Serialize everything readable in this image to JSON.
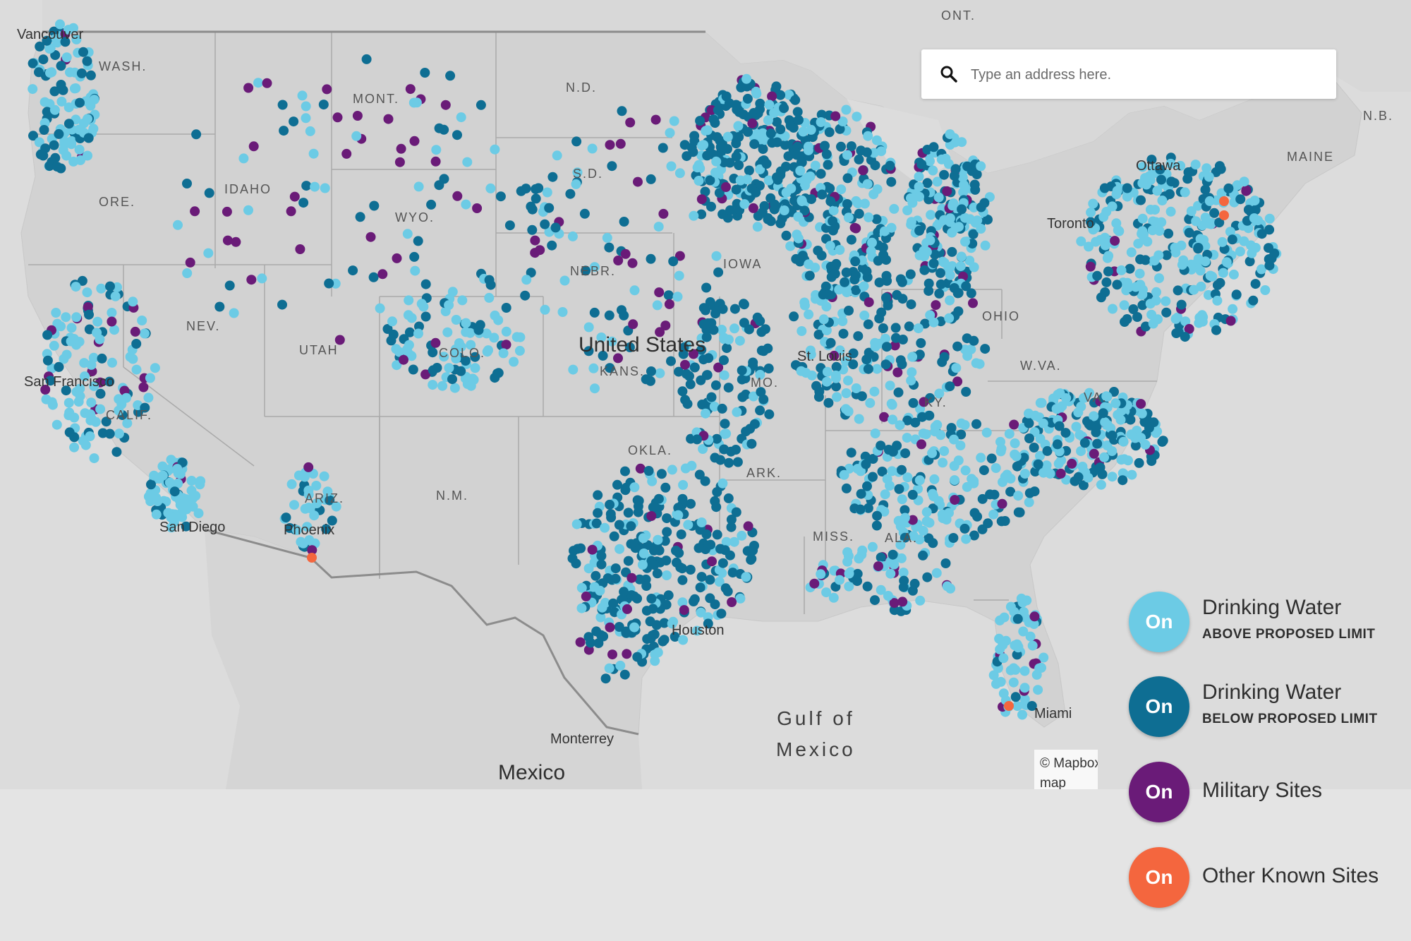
{
  "search": {
    "placeholder": "Type an address here."
  },
  "map": {
    "state_labels": [
      "WASH.",
      "MONT.",
      "N.D.",
      "ORE.",
      "IDAHO",
      "S.D.",
      "WYO.",
      "NEBR.",
      "IOWA",
      "NEV.",
      "UTAH",
      "COLO.",
      "KANS.",
      "MO.",
      "CALIF.",
      "W.VA.",
      "KY.",
      "VA.",
      "ARIZ.",
      "N.M.",
      "OKLA.",
      "ARK.",
      "MISS.",
      "ALA.",
      "MAINE",
      "OHIO",
      "N.B.",
      "ONT."
    ],
    "city_labels": [
      "Vancouver",
      "San Francisco",
      "San Diego",
      "Phoenix",
      "St. Louis",
      "Houston",
      "Miami",
      "Ottawa",
      "Toronto",
      "Monterrey"
    ],
    "country_labels": [
      "United States",
      "Mexico"
    ],
    "water_labels": [
      "Gulf of",
      "Mexico"
    ],
    "attribution": [
      "© Mapbox",
      "map"
    ]
  },
  "legend": {
    "items": [
      {
        "toggle": "On",
        "title": "Drinking Water",
        "subtitle": "ABOVE PROPOSED LIMIT",
        "color": "#6ccbe5"
      },
      {
        "toggle": "On",
        "title": "Drinking Water",
        "subtitle": "BELOW PROPOSED LIMIT",
        "color": "#0e6e93"
      },
      {
        "toggle": "On",
        "title": "Military Sites",
        "subtitle": "",
        "color": "#6a1b78"
      },
      {
        "toggle": "On",
        "title": "Other Known Sites",
        "subtitle": "",
        "color": "#f4663e"
      }
    ]
  }
}
